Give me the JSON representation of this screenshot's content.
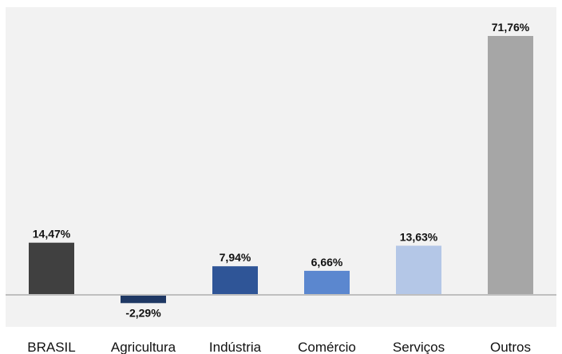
{
  "chart_data": {
    "type": "bar",
    "title": "",
    "xlabel": "",
    "ylabel": "",
    "categories": [
      "BRASIL",
      "Agricultura",
      "Indústria",
      "Comércio",
      "Serviços",
      "Outros"
    ],
    "values": [
      14.47,
      -2.29,
      7.94,
      6.66,
      13.63,
      71.76
    ],
    "value_labels": [
      "14,47%",
      "-2,29%",
      "7,94%",
      "6,66%",
      "13,63%",
      "71,76%"
    ],
    "colors": [
      "#404040",
      "#1f3864",
      "#2f5597",
      "#5b87cf",
      "#b4c7e7",
      "#a6a6a6"
    ],
    "plot_background": "#f2f2f2",
    "axis_color": "#bfbfbf",
    "ylim": [
      -3.5,
      75
    ],
    "grid": false,
    "legend": "none"
  }
}
